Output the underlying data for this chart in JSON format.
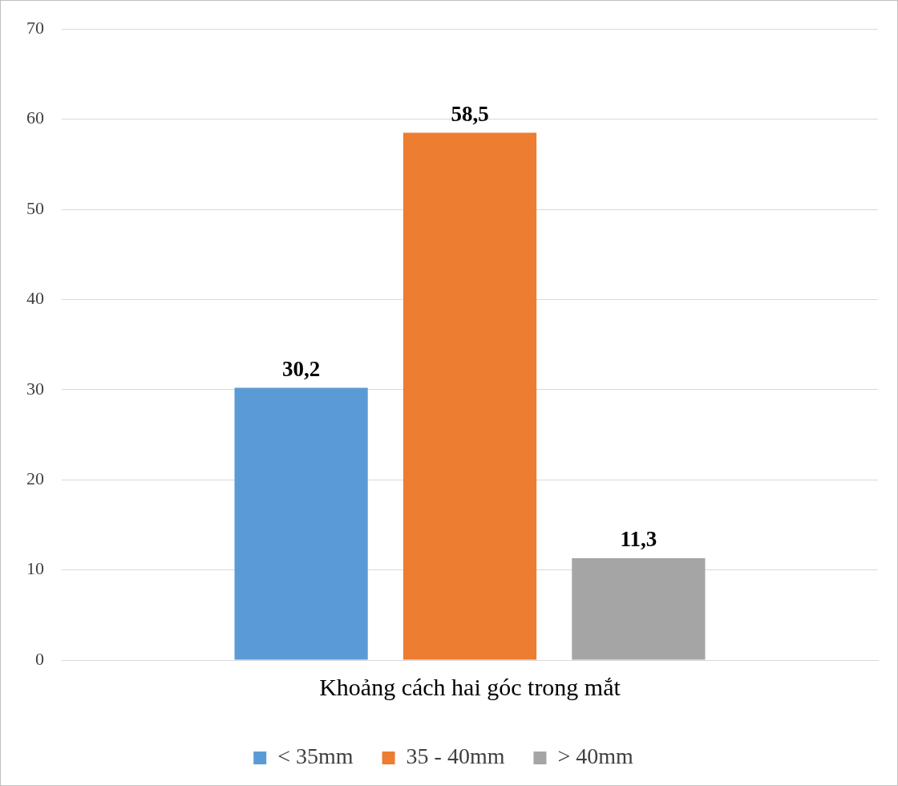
{
  "chart_data": {
    "type": "bar",
    "categories": [
      "Khoảng cách hai góc trong mắt"
    ],
    "series": [
      {
        "name": "< 35mm",
        "color": "#5b9bd5",
        "values": [
          30.2
        ],
        "value_labels": [
          "30,2"
        ]
      },
      {
        "name": "35 - 40mm",
        "color": "#ed7d31",
        "values": [
          58.5
        ],
        "value_labels": [
          "58,5"
        ]
      },
      {
        "name": "> 40mm",
        "color": "#a5a5a5",
        "values": [
          11.3
        ],
        "value_labels": [
          "11,3"
        ]
      }
    ],
    "ylim": [
      0,
      70
    ],
    "yticks": [
      0,
      10,
      20,
      30,
      40,
      50,
      60,
      70
    ],
    "grid": "y",
    "legend": "bottom"
  }
}
